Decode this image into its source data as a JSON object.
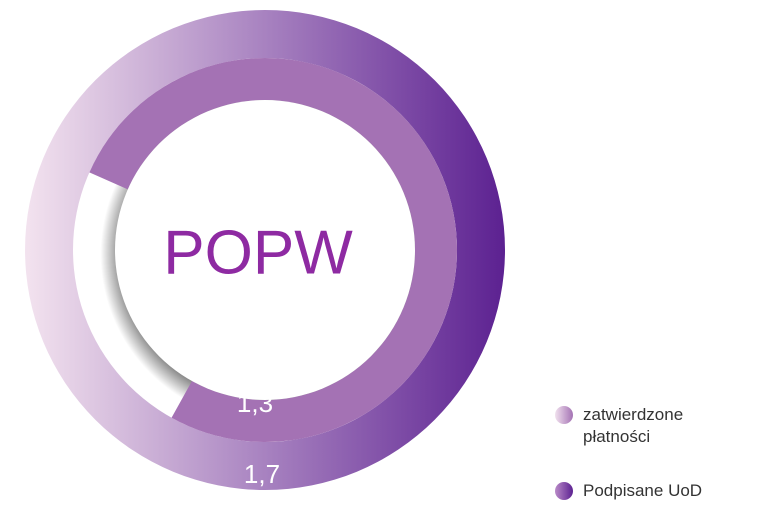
{
  "chart_data": {
    "type": "radial_bar",
    "center_label": "POPW",
    "series": [
      {
        "name": "zatwierdzone płatności",
        "color": "#a472b4",
        "values": [
          1.3
        ],
        "value_labels": [
          "1,3"
        ]
      },
      {
        "name": "Podpisane UoD",
        "color": "#5c2191",
        "values": [
          1.7
        ],
        "value_labels": [
          "1,7"
        ]
      }
    ],
    "legend": "bottom-right"
  }
}
